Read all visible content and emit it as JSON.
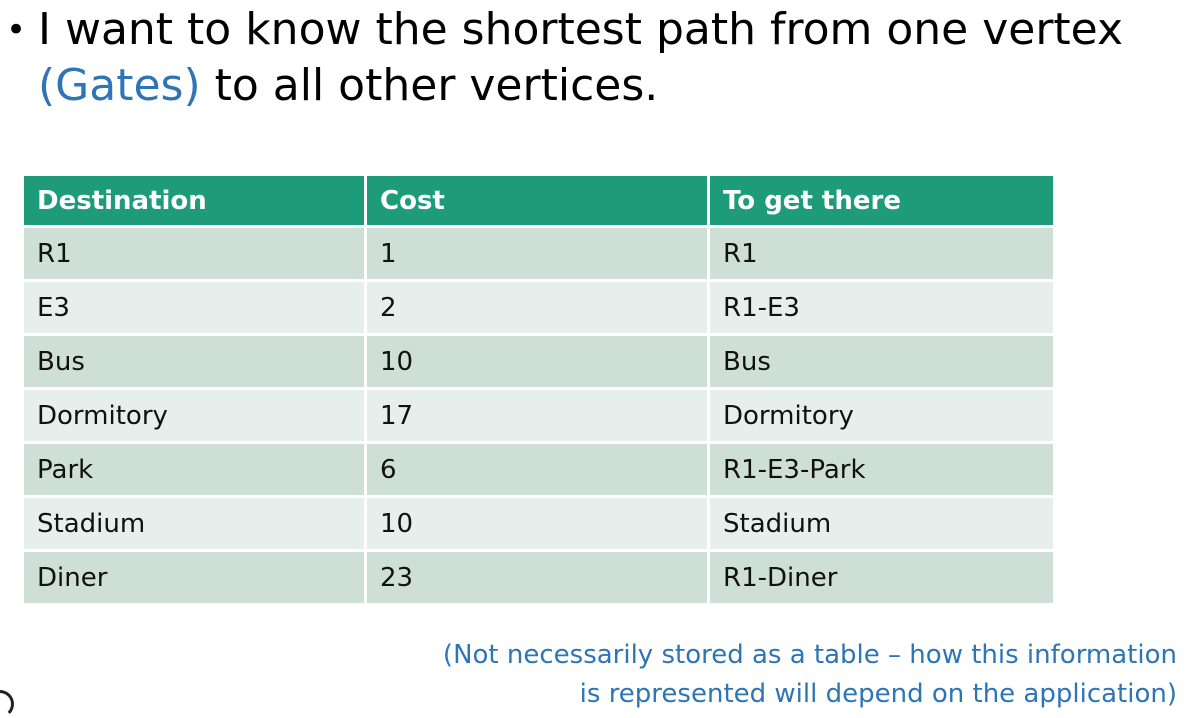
{
  "bullet": {
    "line1": "I want to know the shortest path from one vertex",
    "highlight": "(Gates)",
    "line2_rest": " to all other vertices."
  },
  "table": {
    "headers": [
      "Destination",
      "Cost",
      "To get there"
    ],
    "rows": [
      [
        "R1",
        "1",
        "R1"
      ],
      [
        "E3",
        "2",
        "R1-E3"
      ],
      [
        "Bus",
        "10",
        "Bus"
      ],
      [
        "Dormitory",
        "17",
        "Dormitory"
      ],
      [
        "Park",
        "6",
        "R1-E3-Park"
      ],
      [
        "Stadium",
        "10",
        "Stadium"
      ],
      [
        "Diner",
        "23",
        "R1-Diner"
      ]
    ]
  },
  "note": {
    "line1": "(Not necessarily stored as a table – how this information",
    "line2": "is represented will depend on the application)"
  },
  "colors": {
    "header_bg": "#1e9c7a",
    "row_odd_bg": "#cedfd8",
    "row_even_bg": "#e7efec",
    "accent_text": "#2E75B6"
  }
}
